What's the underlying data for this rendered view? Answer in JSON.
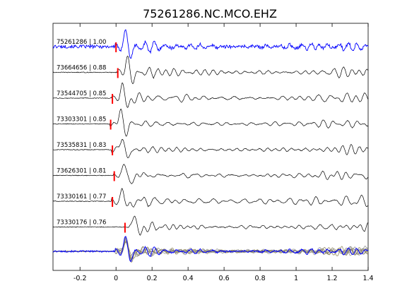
{
  "chart_data": {
    "type": "line",
    "title": "75261286.NC.MCO.EHZ",
    "xlabel": "",
    "ylabel": "",
    "xlim": [
      -0.35,
      1.4
    ],
    "x_ticks": [
      "-0.2",
      "0",
      "0.2",
      "0.4",
      "0.6",
      "0.8",
      "1",
      "1.2",
      "1.4"
    ],
    "x_tick_values": [
      -0.2,
      0,
      0.2,
      0.4,
      0.6,
      0.8,
      1.0,
      1.2,
      1.4
    ],
    "grid": false,
    "colors": {
      "reference": "#0000ff",
      "trace": "#000000",
      "pick": "#ff0000",
      "stack_gray": "#8c8c8c",
      "stack_olive": "#8a7f55",
      "axes": "#000000",
      "background": "#ffffff"
    },
    "traces": [
      {
        "label": "75261286 | 1.00",
        "event_id": "75261286",
        "cc": 1.0,
        "pick_time": 0.0,
        "reference": true
      },
      {
        "label": "73664656 | 0.88",
        "event_id": "73664656",
        "cc": 0.88,
        "pick_time": 0.01
      },
      {
        "label": "73544705 | 0.85",
        "event_id": "73544705",
        "cc": 0.85,
        "pick_time": -0.02
      },
      {
        "label": "73303301 | 0.85",
        "event_id": "73303301",
        "cc": 0.85,
        "pick_time": -0.03
      },
      {
        "label": "73535831 | 0.83",
        "event_id": "73535831",
        "cc": 0.83,
        "pick_time": -0.02
      },
      {
        "label": "73626301 | 0.81",
        "event_id": "73626301",
        "cc": 0.81,
        "pick_time": -0.01
      },
      {
        "label": "73330161 | 0.77",
        "event_id": "73330161",
        "cc": 0.77,
        "pick_time": -0.02
      },
      {
        "label": "73330176 | 0.76",
        "event_id": "73330176",
        "cc": 0.76,
        "pick_time": 0.05
      }
    ],
    "stack": {
      "description": "overlay of all aligned traces",
      "n_traces": 8
    }
  }
}
